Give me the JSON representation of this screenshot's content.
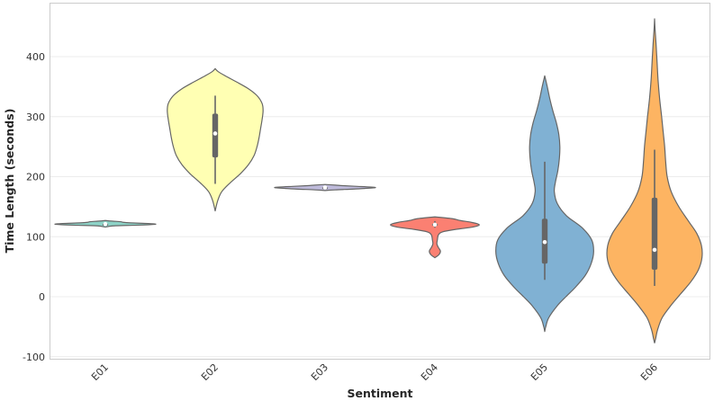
{
  "chart_data": {
    "type": "violin",
    "title": "",
    "xlabel": "Sentiment",
    "ylabel": "Time Length (seconds)",
    "ylim": [
      -105,
      475
    ],
    "yticks": [
      -100,
      0,
      100,
      200,
      300,
      400
    ],
    "grid": true,
    "violin_edge_color": "#666666",
    "box_color": "#666666",
    "median_color": "#ffffff",
    "categories": [
      "E01",
      "E02",
      "E03",
      "E04",
      "E05",
      "E06"
    ],
    "violins": [
      {
        "name": "E01",
        "color": "#8dd3c7",
        "box": {
          "whisker_low": 119,
          "q1": 120,
          "median": 121,
          "q3": 122,
          "whisker_high": 124
        },
        "profile": [
          [
            116,
            0
          ],
          [
            118,
            0.15
          ],
          [
            119,
            0.55
          ],
          [
            120,
            0.88
          ],
          [
            121,
            1.0
          ],
          [
            122,
            0.85
          ],
          [
            123,
            0.5
          ],
          [
            124,
            0.35
          ],
          [
            125,
            0.3
          ],
          [
            126,
            0.12
          ],
          [
            127,
            0
          ]
        ]
      },
      {
        "name": "E02",
        "color": "#ffffb3",
        "box": {
          "whisker_low": 188,
          "q1": 232,
          "median": 272,
          "q3": 305,
          "whisker_high": 335
        },
        "profile": [
          [
            143,
            0
          ],
          [
            160,
            0.05
          ],
          [
            175,
            0.13
          ],
          [
            190,
            0.3
          ],
          [
            205,
            0.5
          ],
          [
            220,
            0.66
          ],
          [
            235,
            0.77
          ],
          [
            250,
            0.83
          ],
          [
            265,
            0.87
          ],
          [
            280,
            0.9
          ],
          [
            295,
            0.93
          ],
          [
            310,
            0.95
          ],
          [
            322,
            0.93
          ],
          [
            335,
            0.83
          ],
          [
            347,
            0.65
          ],
          [
            358,
            0.42
          ],
          [
            368,
            0.2
          ],
          [
            375,
            0.06
          ],
          [
            380,
            0
          ]
        ]
      },
      {
        "name": "E03",
        "color": "#bebada",
        "box": {
          "whisker_low": 180,
          "q1": 181,
          "median": 182,
          "q3": 183,
          "whisker_high": 185
        },
        "profile": [
          [
            177,
            0
          ],
          [
            178,
            0.2
          ],
          [
            180,
            0.7
          ],
          [
            182,
            1.0
          ],
          [
            184,
            0.6
          ],
          [
            185,
            0.35
          ],
          [
            186,
            0.2
          ],
          [
            187,
            0
          ]
        ]
      },
      {
        "name": "E04",
        "color": "#fb8072",
        "box": {
          "whisker_low": 115,
          "q1": 118,
          "median": 120,
          "q3": 122,
          "whisker_high": 126
        },
        "profile": [
          [
            65,
            0
          ],
          [
            70,
            0.08
          ],
          [
            76,
            0.11
          ],
          [
            82,
            0.07
          ],
          [
            88,
            0.04
          ],
          [
            95,
            0.05
          ],
          [
            103,
            0.07
          ],
          [
            108,
            0.15
          ],
          [
            112,
            0.4
          ],
          [
            116,
            0.75
          ],
          [
            120,
            0.88
          ],
          [
            124,
            0.72
          ],
          [
            127,
            0.5
          ],
          [
            130,
            0.35
          ],
          [
            133,
            0
          ]
        ]
      },
      {
        "name": "E05",
        "color": "#80b1d3",
        "box": {
          "whisker_low": 28,
          "q1": 55,
          "median": 91,
          "q3": 130,
          "whisker_high": 225
        },
        "profile": [
          [
            -58,
            0
          ],
          [
            -50,
            0.02
          ],
          [
            -35,
            0.08
          ],
          [
            -15,
            0.25
          ],
          [
            0,
            0.42
          ],
          [
            15,
            0.6
          ],
          [
            35,
            0.8
          ],
          [
            55,
            0.92
          ],
          [
            75,
            0.97
          ],
          [
            95,
            0.93
          ],
          [
            115,
            0.74
          ],
          [
            135,
            0.43
          ],
          [
            155,
            0.25
          ],
          [
            175,
            0.19
          ],
          [
            190,
            0.21
          ],
          [
            210,
            0.26
          ],
          [
            230,
            0.29
          ],
          [
            250,
            0.3
          ],
          [
            270,
            0.28
          ],
          [
            290,
            0.23
          ],
          [
            310,
            0.16
          ],
          [
            330,
            0.1
          ],
          [
            350,
            0.05
          ],
          [
            368,
            0
          ]
        ]
      },
      {
        "name": "E06",
        "color": "#fdb462",
        "box": {
          "whisker_low": 18,
          "q1": 45,
          "median": 78,
          "q3": 165,
          "whisker_high": 245
        },
        "profile": [
          [
            -77,
            0
          ],
          [
            -70,
            0.02
          ],
          [
            -55,
            0.06
          ],
          [
            -35,
            0.15
          ],
          [
            -15,
            0.32
          ],
          [
            5,
            0.52
          ],
          [
            25,
            0.72
          ],
          [
            45,
            0.87
          ],
          [
            65,
            0.94
          ],
          [
            85,
            0.93
          ],
          [
            105,
            0.84
          ],
          [
            125,
            0.68
          ],
          [
            150,
            0.48
          ],
          [
            175,
            0.33
          ],
          [
            200,
            0.25
          ],
          [
            225,
            0.22
          ],
          [
            250,
            0.2
          ],
          [
            275,
            0.17
          ],
          [
            300,
            0.14
          ],
          [
            330,
            0.1
          ],
          [
            360,
            0.07
          ],
          [
            390,
            0.05
          ],
          [
            420,
            0.03
          ],
          [
            445,
            0.01
          ],
          [
            463,
            0
          ]
        ]
      }
    ]
  }
}
